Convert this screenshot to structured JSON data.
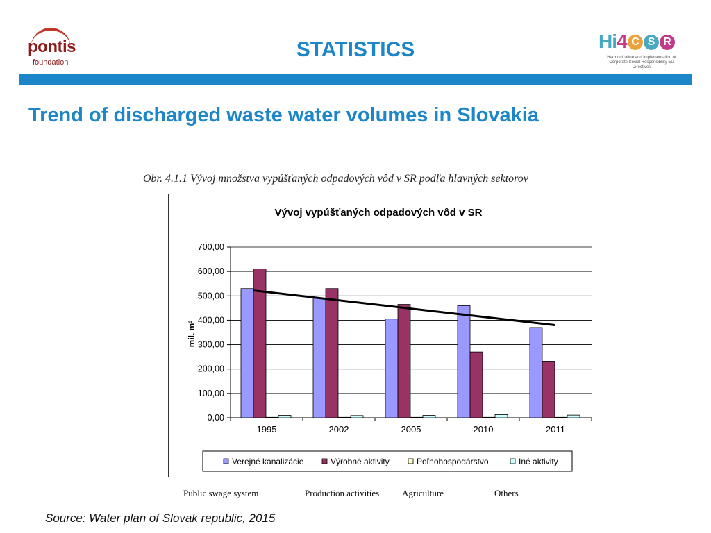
{
  "header": {
    "left_logo": {
      "name": "pontis",
      "sub": "foundation"
    },
    "heading": "STATISTICS",
    "right_logo": {
      "hi": "Hi",
      "four": "4",
      "letters": [
        "C",
        "S",
        "R"
      ],
      "letter_colors": [
        "#e8a33c",
        "#48a8c2",
        "#c23a8a"
      ],
      "tagline": "Harmonization and implementation of Corporate Social Responsibility EU Directives"
    },
    "accent_color": "#1c86c8"
  },
  "slide_title": "Trend of discharged waste water volumes in Slovakia",
  "figure_caption": "Obr. 4.1.1     Vývoj množstva vypúšťaných odpadových vôd v SR podľa hlavných sektorov",
  "translations": [
    "Public swage system",
    "Production activities",
    "Agriculture",
    "Others"
  ],
  "source": "Source: Water plan of Slovak republic, 2015",
  "chart_data": {
    "type": "bar",
    "title": "Vývoj vypúšťaných odpadových vôd v SR",
    "ylabel": "mil. m³",
    "xlabel": "",
    "ylim": [
      0,
      700
    ],
    "yticks": [
      "0,00",
      "100,00",
      "200,00",
      "300,00",
      "400,00",
      "500,00",
      "600,00",
      "700,00"
    ],
    "grid": true,
    "legend_position": "bottom",
    "categories": [
      "1995",
      "2002",
      "2005",
      "2010",
      "2011"
    ],
    "series": [
      {
        "name": "Verejné kanalizácie",
        "color": "#9999ff",
        "values": [
          530,
          490,
          405,
          460,
          370
        ]
      },
      {
        "name": "Výrobné aktivity",
        "color": "#993366",
        "values": [
          610,
          530,
          465,
          270,
          232
        ]
      },
      {
        "name": "Poľnohospodárstvo",
        "color": "#ffffcc",
        "values": [
          2,
          2,
          2,
          2,
          2
        ]
      },
      {
        "name": "Iné aktivity",
        "color": "#ccffff",
        "values": [
          10,
          9,
          10,
          13,
          11
        ]
      }
    ],
    "trendline": {
      "start_value": 522,
      "end_value": 380
    }
  }
}
